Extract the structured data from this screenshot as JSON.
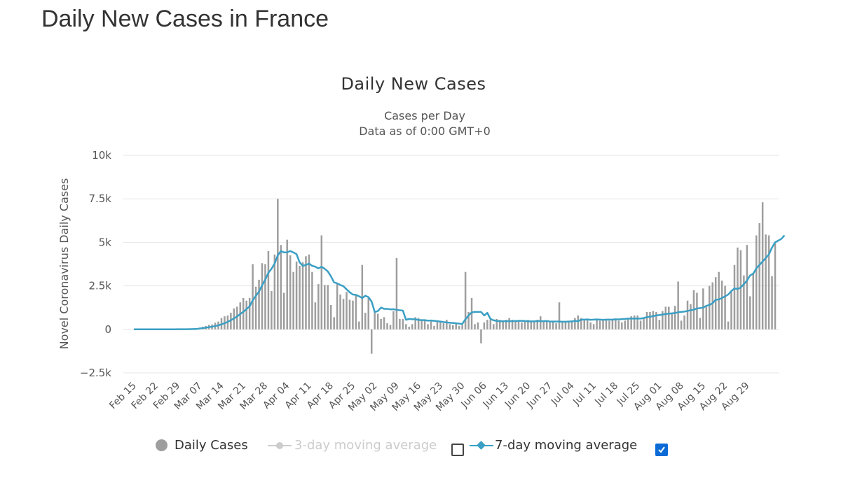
{
  "page": {
    "title": "Daily New Cases in France"
  },
  "colors": {
    "bars": "#9e9e9e",
    "avg7": "#3a9fc4",
    "avg3": "#cccccc",
    "axis_text": "#555555",
    "grid": "#e6e6e6",
    "checkbox": "#0a6bd6"
  },
  "legend": {
    "daily": "Daily Cases",
    "avg3": "3-day moving average",
    "avg3_enabled": false,
    "avg7": "7-day moving average",
    "avg7_enabled": true
  },
  "chart_data": {
    "type": "bar",
    "title": "Daily New Cases",
    "subtitle_line1": "Cases per Day",
    "subtitle_line2": "Data as of 0:00 GMT+0",
    "ylabel": "Novel Coronavirus Daily Cases",
    "xlabel": "",
    "ylim": [
      -2500,
      10000
    ],
    "yticks": [
      {
        "value": 10000,
        "label": "10k"
      },
      {
        "value": 7500,
        "label": "7.5k"
      },
      {
        "value": 5000,
        "label": "5k"
      },
      {
        "value": 2500,
        "label": "2.5k"
      },
      {
        "value": 0,
        "label": "0"
      },
      {
        "value": -2500,
        "label": "−2.5k"
      }
    ],
    "xticks": [
      {
        "index": 0,
        "label": "Feb 15"
      },
      {
        "index": 7,
        "label": "Feb 22"
      },
      {
        "index": 14,
        "label": "Feb 29"
      },
      {
        "index": 21,
        "label": "Mar 07"
      },
      {
        "index": 28,
        "label": "Mar 14"
      },
      {
        "index": 35,
        "label": "Mar 21"
      },
      {
        "index": 42,
        "label": "Mar 28"
      },
      {
        "index": 49,
        "label": "Apr 04"
      },
      {
        "index": 56,
        "label": "Apr 11"
      },
      {
        "index": 63,
        "label": "Apr 18"
      },
      {
        "index": 70,
        "label": "Apr 25"
      },
      {
        "index": 77,
        "label": "May 02"
      },
      {
        "index": 84,
        "label": "May 09"
      },
      {
        "index": 91,
        "label": "May 16"
      },
      {
        "index": 98,
        "label": "May 23"
      },
      {
        "index": 105,
        "label": "May 30"
      },
      {
        "index": 112,
        "label": "Jun 06"
      },
      {
        "index": 119,
        "label": "Jun 13"
      },
      {
        "index": 126,
        "label": "Jun 20"
      },
      {
        "index": 133,
        "label": "Jun 27"
      },
      {
        "index": 140,
        "label": "Jul 04"
      },
      {
        "index": 147,
        "label": "Jul 11"
      },
      {
        "index": 154,
        "label": "Jul 18"
      },
      {
        "index": 161,
        "label": "Jul 25"
      },
      {
        "index": 168,
        "label": "Aug 01"
      },
      {
        "index": 175,
        "label": "Aug 08"
      },
      {
        "index": 182,
        "label": "Aug 15"
      },
      {
        "index": 189,
        "label": "Aug 22"
      },
      {
        "index": 196,
        "label": "Aug 29"
      }
    ],
    "series": [
      {
        "name": "Daily Cases",
        "values": [
          0,
          0,
          0,
          0,
          0,
          0,
          0,
          0,
          0,
          0,
          0,
          0,
          0,
          0,
          2,
          4,
          6,
          10,
          20,
          40,
          60,
          100,
          150,
          200,
          260,
          280,
          380,
          450,
          650,
          750,
          800,
          950,
          1200,
          1300,
          1550,
          1800,
          1650,
          1800,
          3750,
          2450,
          2850,
          3800,
          3750,
          4500,
          2200,
          4300,
          7500,
          4850,
          2100,
          5150,
          4250,
          3300,
          3900,
          3650,
          3850,
          4200,
          4300,
          3300,
          1550,
          2600,
          5400,
          2550,
          2550,
          1400,
          700,
          2600,
          2000,
          1750,
          2150,
          1700,
          1650,
          2000,
          450,
          3700,
          950,
          1800,
          -1400,
          1050,
          900,
          600,
          700,
          350,
          250,
          1050,
          4100,
          600,
          600,
          300,
          150,
          300,
          700,
          650,
          550,
          500,
          300,
          450,
          200,
          450,
          400,
          350,
          550,
          300,
          250,
          300,
          200,
          250,
          3300,
          1000,
          1800,
          300,
          400,
          -800,
          400,
          550,
          550,
          300,
          600,
          550,
          500,
          550,
          650,
          550,
          450,
          500,
          400,
          500,
          550,
          500,
          450,
          550,
          750,
          500,
          500,
          400,
          450,
          350,
          1550,
          450,
          400,
          450,
          500,
          650,
          800,
          650,
          550,
          600,
          400,
          300,
          550,
          500,
          550,
          600,
          500,
          550,
          600,
          500,
          400,
          500,
          600,
          750,
          800,
          800,
          500,
          600,
          1000,
          1000,
          1050,
          1000,
          550,
          1050,
          1300,
          1300,
          900,
          1350,
          2750,
          500,
          800,
          1650,
          1450,
          2250,
          2100,
          650,
          2350,
          1300,
          2500,
          2700,
          3000,
          3300,
          2800,
          2500,
          450,
          2200,
          3700,
          4700,
          4550,
          3100,
          4850,
          1900,
          3250,
          5400,
          6100,
          7300,
          5450,
          5400,
          3050,
          4950
        ],
        "color": "#9e9e9e"
      },
      {
        "name": "7-day moving average",
        "values": [
          0,
          0,
          0,
          0,
          0,
          0,
          0,
          0,
          0,
          0,
          0,
          0,
          0,
          0,
          5,
          6,
          7,
          8,
          10,
          15,
          20,
          50,
          70,
          95,
          125,
          155,
          190,
          230,
          290,
          355,
          430,
          520,
          630,
          740,
          880,
          1010,
          1160,
          1320,
          1670,
          1920,
          2170,
          2530,
          2850,
          3250,
          3480,
          3780,
          4250,
          4500,
          4420,
          4430,
          4500,
          4420,
          4320,
          3850,
          3650,
          3700,
          3780,
          3650,
          3600,
          3500,
          3600,
          3480,
          3330,
          3050,
          2700,
          2640,
          2550,
          2480,
          2300,
          2130,
          2000,
          1980,
          1900,
          1800,
          1930,
          1850,
          1600,
          1000,
          1050,
          1250,
          1180,
          1180,
          1150,
          1160,
          1120,
          1100,
          1080,
          550,
          600,
          580,
          580,
          540,
          530,
          530,
          500,
          510,
          490,
          470,
          450,
          420,
          400,
          380,
          370,
          350,
          330,
          310,
          580,
          800,
          970,
          1000,
          1000,
          1000,
          800,
          950,
          600,
          520,
          490,
          460,
          470,
          470,
          470,
          470,
          480,
          490,
          490,
          480,
          460,
          460,
          460,
          480,
          470,
          470,
          480,
          450,
          450,
          450,
          450,
          440,
          440,
          450,
          460,
          480,
          470,
          560,
          560,
          570,
          550,
          560,
          570,
          560,
          550,
          560,
          560,
          560,
          580,
          570,
          590,
          600,
          620,
          620,
          620,
          620,
          620,
          650,
          700,
          730,
          760,
          800,
          820,
          850,
          880,
          900,
          920,
          940,
          980,
          1000,
          1020,
          1060,
          1100,
          1130,
          1200,
          1220,
          1250,
          1350,
          1400,
          1500,
          1700,
          1720,
          1800,
          1900,
          2000,
          2200,
          2350,
          2320,
          2400,
          2600,
          2800,
          3100,
          3200,
          3500,
          3700,
          3900,
          4100,
          4300,
          4700,
          5000,
          5100,
          5200,
          5400
        ],
        "color": "#3a9fc4"
      }
    ]
  }
}
